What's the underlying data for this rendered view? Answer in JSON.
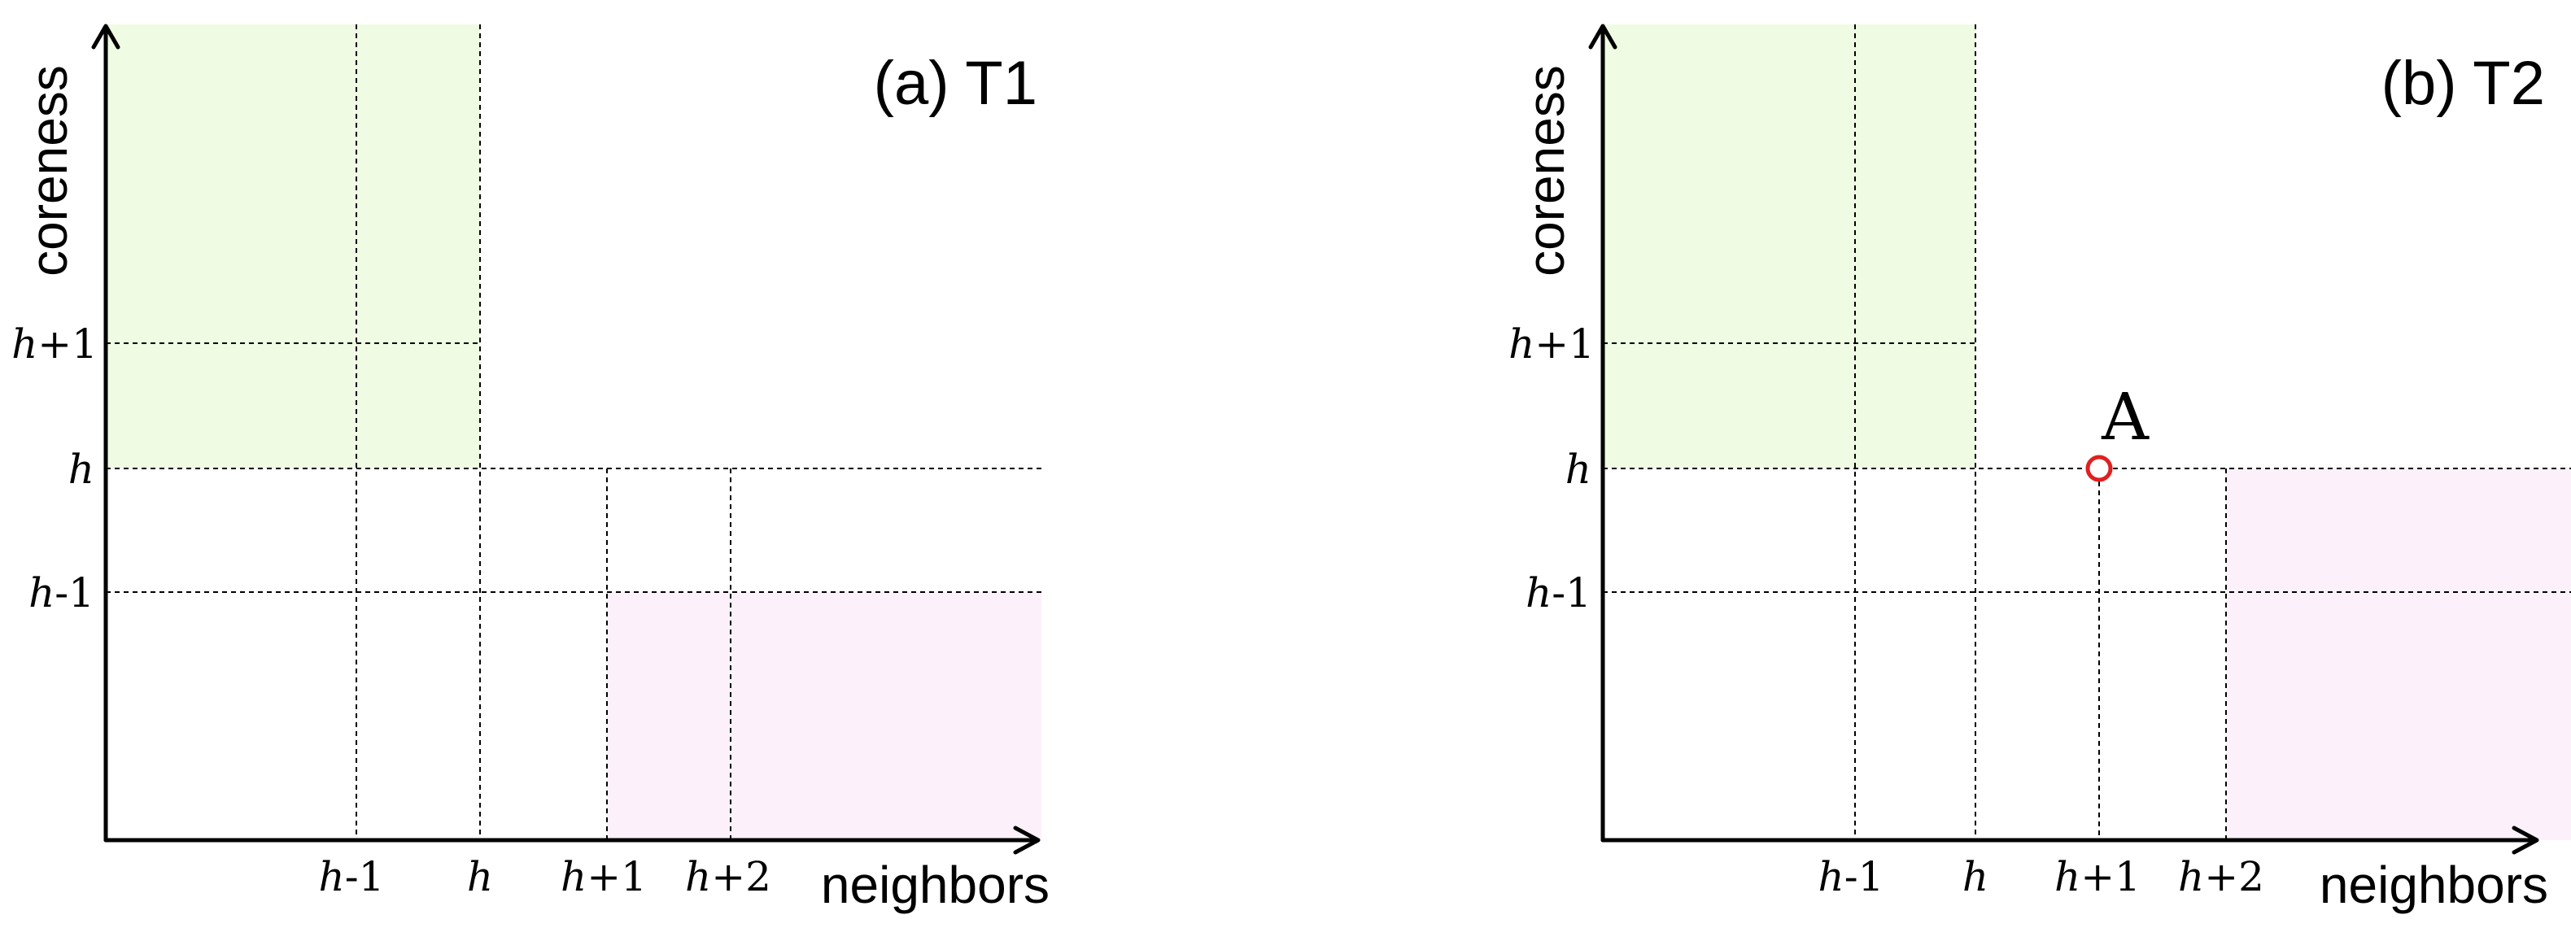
{
  "panels": [
    {
      "id": "T1",
      "title": "(a) T1",
      "x_axis_label": "neighbors",
      "y_axis_label": "coreness",
      "x_ticks": [
        {
          "base": "h",
          "suffix": "-1"
        },
        {
          "base": "h",
          "suffix": ""
        },
        {
          "base": "h",
          "suffix": "+1"
        },
        {
          "base": "h",
          "suffix": "+2"
        }
      ],
      "y_ticks": [
        {
          "base": "h",
          "suffix": "+1"
        },
        {
          "base": "h",
          "suffix": ""
        },
        {
          "base": "h",
          "suffix": "-1"
        }
      ],
      "green_region": {
        "color": "#effbe3"
      },
      "pink_region": {
        "color": "#fcf1fa"
      },
      "point": null
    },
    {
      "id": "T2",
      "title": "(b) T2",
      "x_axis_label": "neighbors",
      "y_axis_label": "coreness",
      "x_ticks": [
        {
          "base": "h",
          "suffix": "-1"
        },
        {
          "base": "h",
          "suffix": ""
        },
        {
          "base": "h",
          "suffix": "+1"
        },
        {
          "base": "h",
          "suffix": "+2"
        }
      ],
      "y_ticks": [
        {
          "base": "h",
          "suffix": "+1"
        },
        {
          "base": "h",
          "suffix": ""
        },
        {
          "base": "h",
          "suffix": "-1"
        }
      ],
      "green_region": {
        "color": "#effbe3"
      },
      "pink_region": {
        "color": "#fcf1fa"
      },
      "point": {
        "label": "A",
        "color": "#e02020"
      }
    }
  ]
}
